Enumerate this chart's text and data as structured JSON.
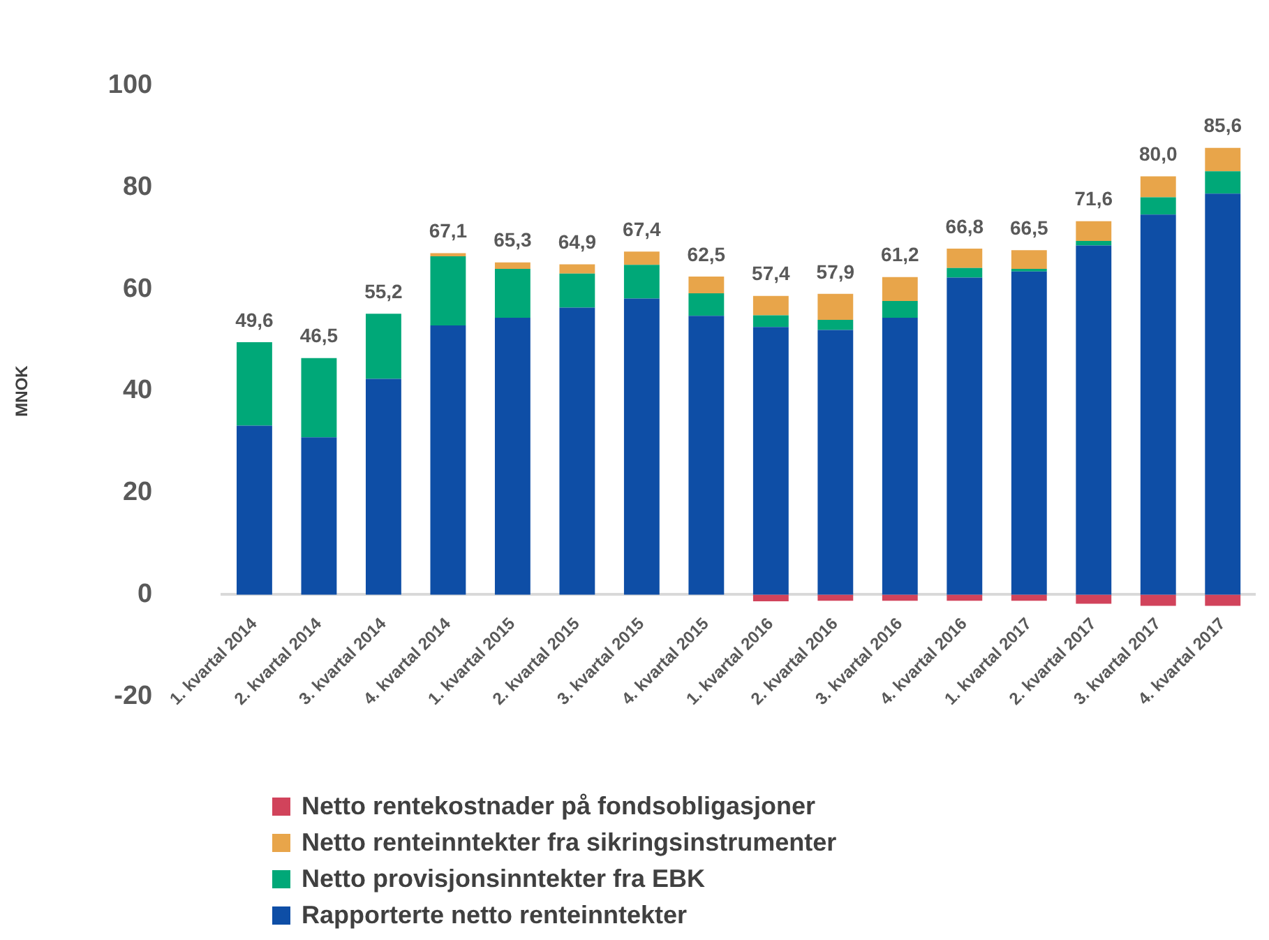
{
  "chart_data": {
    "type": "bar",
    "stacked": true,
    "ylabel": "MNOK",
    "categories": [
      "1. kvartal 2014",
      "2. kvartal 2014",
      "3. kvartal 2014",
      "4. kvartal 2014",
      "1. kvartal 2015",
      "2. kvartal 2015",
      "3. kvartal 2015",
      "4. kvartal 2015",
      "1. kvartal 2016",
      "2. kvartal 2016",
      "3. kvartal 2016",
      "4. kvartal 2016",
      "1. kvartal 2017",
      "2. kvartal 2017",
      "3. kvartal 2017",
      "4. kvartal 2017"
    ],
    "series": [
      {
        "name": "Rapporterte netto renteinntekter",
        "color": "#0e4ea6",
        "values": [
          33.2,
          30.9,
          42.4,
          52.9,
          54.4,
          56.4,
          58.2,
          54.8,
          52.6,
          52.0,
          54.4,
          62.3,
          63.5,
          68.6,
          74.7,
          78.8
        ]
      },
      {
        "name": "Netto provisjonsinntekter fra EBK",
        "color": "#00a878",
        "values": [
          16.4,
          15.6,
          12.8,
          13.6,
          9.6,
          6.7,
          6.6,
          4.4,
          2.3,
          2.0,
          3.3,
          1.9,
          0.5,
          0.9,
          3.4,
          4.4
        ]
      },
      {
        "name": "Netto renteinntekter fra sikringsinstrumenter",
        "color": "#e8a54a",
        "values": [
          0,
          0,
          0,
          0.6,
          1.3,
          1.8,
          2.6,
          3.3,
          3.8,
          5.1,
          4.7,
          3.8,
          3.7,
          3.9,
          4.1,
          4.6
        ]
      },
      {
        "name": "Netto rentekostnader på fondsobligasjoner",
        "color": "#d1435b",
        "values": [
          0,
          0,
          0,
          0,
          0,
          0,
          0,
          0,
          -1.3,
          -1.2,
          -1.2,
          -1.2,
          -1.2,
          -1.8,
          -2.2,
          -2.2
        ]
      }
    ],
    "totals": [
      "49,6",
      "46,5",
      "55,2",
      "67,1",
      "65,3",
      "64,9",
      "67,4",
      "62,5",
      "57,4",
      "57,9",
      "61,2",
      "66,8",
      "66,5",
      "71,6",
      "80,0",
      "85,6"
    ],
    "ylim": [
      -20,
      100
    ],
    "yticks": [
      -20,
      0,
      20,
      40,
      60,
      80,
      100
    ],
    "grid": false,
    "legend": "bottom"
  }
}
